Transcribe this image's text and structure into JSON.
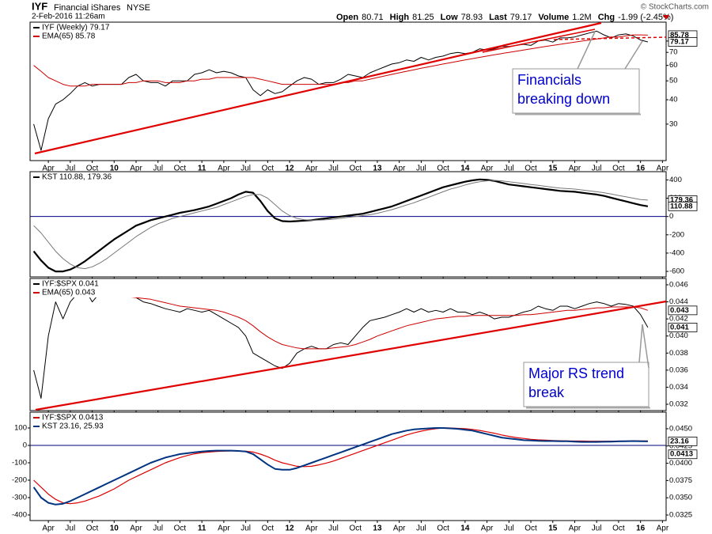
{
  "header": {
    "symbol": "IYF",
    "name": "Financial iShares",
    "exchange": "NYSE",
    "timestamp": "2-Feb-2016 11:26am",
    "quote": [
      [
        "Open",
        "80.71"
      ],
      [
        "High",
        "81.25"
      ],
      [
        "Low",
        "78.93"
      ],
      [
        "Last",
        "79.17"
      ],
      [
        "Volume",
        "1.2M"
      ],
      [
        "Chg",
        "-1.99 (-2.45%)"
      ]
    ],
    "credit": "© StockCharts.com"
  },
  "chart_data": {
    "type": "line",
    "categories": [
      null,
      null,
      "Apr",
      null,
      null,
      "Jul",
      null,
      null,
      "Oct",
      null,
      null,
      "10",
      null,
      null,
      "Apr",
      null,
      null,
      "Jul",
      null,
      null,
      "Oct",
      null,
      null,
      "11",
      null,
      null,
      "Apr",
      null,
      null,
      "Jul",
      null,
      null,
      "Oct",
      null,
      null,
      "12",
      null,
      null,
      "Apr",
      null,
      null,
      "Jul",
      null,
      null,
      "Oct",
      null,
      null,
      "13",
      null,
      null,
      "Apr",
      null,
      null,
      "Jul",
      null,
      null,
      "Oct",
      null,
      null,
      "14",
      null,
      null,
      "Apr",
      null,
      null,
      "Jul",
      null,
      null,
      "Oct",
      null,
      null,
      "15",
      null,
      null,
      "Apr",
      null,
      null,
      "Jul",
      null,
      null,
      "Oct",
      null,
      null,
      "16",
      null,
      null,
      "Apr"
    ],
    "panels": [
      {
        "log": true,
        "ylim": [
          19.5,
          100
        ],
        "yticks": [
          30,
          40,
          50,
          60,
          70,
          80
        ],
        "yaxis_side": "right",
        "xlabels": true,
        "legend": [
          {
            "label": "IYF (Weekly) 79.17",
            "color": "#000000"
          },
          {
            "label": "EMA(65) 85.78",
            "color": "#cc0000"
          }
        ],
        "markers": [
          85.78,
          79.17
        ],
        "annotations": [
          {
            "lines": [
              "Financials",
              "breaking down"
            ]
          }
        ],
        "series": [
          {
            "color": "#000000",
            "width": 1,
            "values": [
              30,
              22,
              32,
              38,
              40,
              43,
              47,
              49,
              47,
              48,
              48,
              48,
              48,
              52,
              54,
              50,
              49,
              49,
              47,
              50,
              50,
              50,
              54,
              55,
              57,
              55,
              56,
              55,
              53,
              52,
              45,
              42,
              45,
              43,
              44,
              47,
              50,
              52,
              51,
              48,
              49,
              49,
              51,
              54,
              53,
              52,
              55,
              57,
              59,
              61,
              62,
              64,
              63,
              66,
              64,
              66,
              67,
              69,
              70,
              69,
              70,
              73,
              72,
              73,
              75,
              75,
              76,
              77,
              76,
              80,
              81,
              79,
              83,
              83,
              84,
              86,
              88,
              90,
              86,
              83,
              86,
              87,
              85,
              81,
              79.17,
              null,
              null
            ]
          },
          {
            "color": "#cc0000",
            "width": 1,
            "values": [
              60,
              56,
              52,
              50,
              48,
              47,
              47,
              47,
              48,
              48,
              48,
              48,
              48,
              49,
              49,
              50,
              50,
              50,
              49,
              49,
              49,
              50,
              50,
              51,
              51,
              52,
              52,
              52,
              52,
              52,
              52,
              51,
              50,
              49,
              48,
              48,
              48,
              48,
              48,
              48,
              48,
              48,
              49,
              49,
              50,
              50,
              51,
              52,
              53,
              54,
              55,
              56,
              57,
              58,
              59,
              60,
              61,
              62,
              63,
              64,
              65,
              66,
              67,
              68,
              69,
              70,
              71,
              72,
              73,
              74,
              75,
              76,
              77,
              78,
              79,
              80,
              81,
              82,
              83,
              84,
              84,
              85,
              86,
              86,
              85.78,
              null,
              null
            ]
          }
        ]
      },
      {
        "log": false,
        "ylim": [
          -660,
          490
        ],
        "yticks": [
          400,
          200,
          0,
          -200,
          -400,
          -600
        ],
        "yaxis_side": "right",
        "xlabels": false,
        "zero_line": "#00007f",
        "legend": [
          {
            "label": "KST 110.88, 179.36",
            "color": "#000000"
          }
        ],
        "markers": [
          179.36,
          110.88
        ],
        "series": [
          {
            "color": "#000000",
            "width": 2.2,
            "values": [
              -380,
              -480,
              -560,
              -600,
              -600,
              -580,
              -540,
              -490,
              -430,
              -370,
              -310,
              -250,
              -200,
              -150,
              -100,
              -70,
              -40,
              -20,
              0,
              20,
              40,
              55,
              70,
              90,
              110,
              140,
              170,
              200,
              240,
              270,
              260,
              170,
              60,
              -20,
              -50,
              -55,
              -50,
              -45,
              -40,
              -30,
              -20,
              -10,
              0,
              10,
              20,
              30,
              50,
              70,
              90,
              110,
              140,
              170,
              200,
              230,
              260,
              290,
              320,
              340,
              360,
              380,
              395,
              405,
              400,
              390,
              370,
              350,
              340,
              330,
              320,
              310,
              300,
              290,
              280,
              275,
              270,
              260,
              250,
              240,
              225,
              205,
              185,
              165,
              145,
              125,
              110.88,
              null,
              null
            ]
          },
          {
            "color": "#777777",
            "width": 1,
            "values": [
              -100,
              -180,
              -280,
              -380,
              -460,
              -520,
              -560,
              -570,
              -550,
              -510,
              -460,
              -400,
              -340,
              -280,
              -220,
              -170,
              -120,
              -80,
              -50,
              -20,
              0,
              20,
              40,
              60,
              80,
              100,
              130,
              160,
              190,
              220,
              240,
              240,
              200,
              130,
              60,
              10,
              -20,
              -35,
              -40,
              -40,
              -35,
              -30,
              -20,
              -10,
              0,
              10,
              20,
              35,
              55,
              75,
              100,
              125,
              150,
              180,
              210,
              240,
              270,
              300,
              320,
              345,
              365,
              380,
              390,
              395,
              390,
              380,
              370,
              360,
              350,
              340,
              330,
              320,
              310,
              305,
              300,
              290,
              280,
              270,
              260,
              245,
              230,
              215,
              200,
              185,
              179.36,
              null,
              null
            ]
          }
        ]
      },
      {
        "log": false,
        "ylim": [
          0.03126,
          0.04674
        ],
        "yticks": [
          0.046,
          0.044,
          0.042,
          {
            "value": 0.04,
            "label": "0.040"
          },
          0.038,
          0.036,
          0.034,
          0.032
        ],
        "yaxis_side": "right",
        "xlabels": false,
        "legend": [
          {
            "label": "IYF:$SPX 0.041",
            "color": "#000000"
          },
          {
            "label": "EMA(65) 0.043",
            "color": "#cc0000"
          }
        ],
        "markers": [
          0.043,
          0.041
        ],
        "annotations": [
          {
            "lines": [
              "Major RS trend",
              "break"
            ]
          }
        ],
        "series": [
          {
            "color": "#000000",
            "width": 1,
            "values": [
              0.036,
              0.0327,
              0.04,
              0.044,
              0.042,
              0.044,
              0.045,
              0.0455,
              0.044,
              0.045,
              0.045,
              0.0452,
              0.0448,
              0.0447,
              0.0445,
              0.044,
              0.0438,
              0.0435,
              0.0432,
              0.043,
              0.0428,
              0.0432,
              0.043,
              0.0428,
              0.043,
              0.0425,
              0.042,
              0.0415,
              0.041,
              0.04,
              0.038,
              0.0375,
              0.037,
              0.0365,
              0.0362,
              0.0368,
              0.038,
              0.0385,
              0.0388,
              0.0385,
              0.0385,
              0.039,
              0.0392,
              0.039,
              0.04,
              0.041,
              0.0418,
              0.042,
              0.0422,
              0.0425,
              0.0428,
              0.0432,
              0.0428,
              0.0432,
              0.0428,
              0.043,
              0.0428,
              0.0432,
              0.0428,
              0.0428,
              0.0425,
              0.0428,
              0.0425,
              0.042,
              0.0422,
              0.0422,
              0.0425,
              0.0428,
              0.043,
              0.0435,
              0.0432,
              0.043,
              0.0435,
              0.0435,
              0.0432,
              0.0435,
              0.0438,
              0.044,
              0.0438,
              0.0435,
              0.0438,
              0.0437,
              0.0435,
              0.0425,
              0.041,
              null,
              null
            ]
          },
          {
            "color": "#cc0000",
            "width": 1,
            "values": [
              0.0455,
              0.0452,
              0.045,
              0.0448,
              0.0447,
              0.0447,
              0.0447,
              0.0447,
              0.0447,
              0.0447,
              0.0447,
              0.0447,
              0.0446,
              0.0446,
              0.0445,
              0.0444,
              0.0443,
              0.0441,
              0.0439,
              0.0437,
              0.0435,
              0.0434,
              0.0433,
              0.0432,
              0.0431,
              0.043,
              0.0428,
              0.0425,
              0.0422,
              0.0418,
              0.0412,
              0.0405,
              0.0399,
              0.0394,
              0.039,
              0.0388,
              0.0386,
              0.0385,
              0.0385,
              0.0385,
              0.0385,
              0.0386,
              0.0387,
              0.0388,
              0.039,
              0.0393,
              0.0396,
              0.04,
              0.0403,
              0.0406,
              0.0409,
              0.0412,
              0.0414,
              0.0416,
              0.0418,
              0.042,
              0.0421,
              0.0422,
              0.0423,
              0.0423,
              0.0424,
              0.0424,
              0.0424,
              0.0424,
              0.0424,
              0.0424,
              0.0424,
              0.0425,
              0.0425,
              0.0426,
              0.0427,
              0.0428,
              0.0429,
              0.043,
              0.043,
              0.0431,
              0.0432,
              0.0433,
              0.0433,
              0.0434,
              0.0434,
              0.0434,
              0.0434,
              0.0433,
              0.043,
              null,
              null
            ]
          }
        ]
      },
      {
        "log": false,
        "ylim": [
          -432,
          191
        ],
        "yticks": [
          100,
          0,
          -100,
          -200,
          -300,
          -400
        ],
        "yaxis_side": "left",
        "xlabels": true,
        "y2lim": [
          0.0317,
          0.0474
        ],
        "y2ticks": [
          {
            "value": 0.045,
            "label": "0.0450"
          },
          0.0425,
          {
            "value": 0.04,
            "label": "0.0400"
          },
          0.0375,
          {
            "value": 0.035,
            "label": "0.0350"
          },
          0.0325
        ],
        "zero_line": "#00007f",
        "legend": [
          {
            "label": "IYF:$SPX 0.0413",
            "color": "#cc0000"
          },
          {
            "label": "KST 23.16, 25.93",
            "color": "#003380"
          }
        ],
        "markers": [
          23.16
        ],
        "y2markers": [
          0.0413
        ],
        "series": [
          {
            "color": "#dd0000",
            "width": 1.2,
            "values": [
              -200,
              -240,
              -280,
              -310,
              -330,
              -335,
              -330,
              -320,
              -305,
              -290,
              -270,
              -250,
              -225,
              -200,
              -180,
              -160,
              -140,
              -120,
              -100,
              -85,
              -70,
              -58,
              -48,
              -42,
              -38,
              -35,
              -33,
              -32,
              -32,
              -33,
              -38,
              -50,
              -65,
              -85,
              -100,
              -110,
              -120,
              -122,
              -120,
              -112,
              -102,
              -90,
              -75,
              -60,
              -45,
              -30,
              -15,
              0,
              15,
              30,
              45,
              60,
              72,
              82,
              90,
              96,
              100,
              100,
              98,
              96,
              92,
              86,
              78,
              70,
              60,
              52,
              45,
              40,
              35,
              32,
              30,
              28,
              27,
              26,
              25,
              25,
              24,
              24,
              24,
              24,
              25,
              25,
              26,
              26,
              25.93,
              null,
              null
            ]
          },
          {
            "color": "#003380",
            "width": 2,
            "values": [
              -240,
              -300,
              -330,
              -340,
              -335,
              -320,
              -300,
              -280,
              -260,
              -240,
              -220,
              -200,
              -180,
              -160,
              -140,
              -120,
              -100,
              -85,
              -70,
              -60,
              -50,
              -45,
              -40,
              -35,
              -32,
              -30,
              -30,
              -30,
              -32,
              -35,
              -50,
              -80,
              -110,
              -135,
              -140,
              -140,
              -130,
              -115,
              -100,
              -85,
              -70,
              -55,
              -40,
              -25,
              -10,
              5,
              20,
              35,
              50,
              65,
              75,
              85,
              92,
              95,
              98,
              100,
              100,
              98,
              95,
              90,
              85,
              75,
              65,
              55,
              45,
              40,
              35,
              30,
              28,
              26,
              25,
              25,
              24,
              24,
              22,
              20,
              20,
              20,
              21,
              22,
              23,
              24,
              25,
              24,
              23.16,
              null,
              null
            ]
          }
        ]
      }
    ]
  }
}
